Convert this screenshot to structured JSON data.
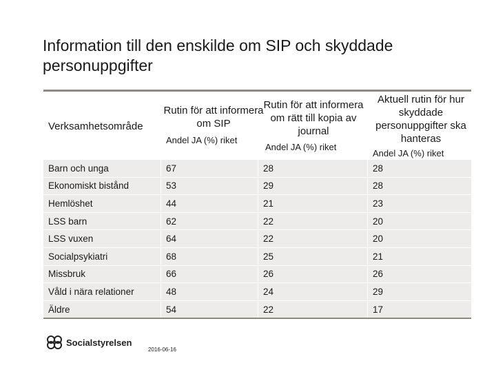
{
  "title": "Information till den enskilde om SIP och skyddade personuppgifter",
  "table": {
    "headers": {
      "area": "Verksamhetsområde",
      "col1": "Rutin för att informera om SIP",
      "col2": "Rutin för att informera om rätt till kopia av journal",
      "col3": "Aktuell rutin för hur skyddade personuppgifter ska hanteras",
      "sub1": "Andel JA (%) riket",
      "sub2": "Andel JA (%) riket",
      "sub3": "Andel JA (%) riket"
    },
    "rows": [
      {
        "area": "Barn och unga",
        "v1": "67",
        "v2": "28",
        "v3": "28"
      },
      {
        "area": "Ekonomiskt bistånd",
        "v1": "53",
        "v2": "29",
        "v3": "28"
      },
      {
        "area": "Hemlöshet",
        "v1": "44",
        "v2": "21",
        "v3": "23"
      },
      {
        "area": "LSS barn",
        "v1": "62",
        "v2": "22",
        "v3": "20"
      },
      {
        "area": "LSS vuxen",
        "v1": "64",
        "v2": "22",
        "v3": "20"
      },
      {
        "area": "Socialpsykiatri",
        "v1": "68",
        "v2": "25",
        "v3": "21"
      },
      {
        "area": "Missbruk",
        "v1": "66",
        "v2": "26",
        "v3": "26"
      },
      {
        "area": "Våld i nära relationer",
        "v1": "48",
        "v2": "24",
        "v3": "29"
      },
      {
        "area": "Äldre",
        "v1": "54",
        "v2": "22",
        "v3": "17"
      }
    ]
  },
  "footer": {
    "logo_text": "Socialstyrelsen",
    "date": "2016-06-16"
  }
}
